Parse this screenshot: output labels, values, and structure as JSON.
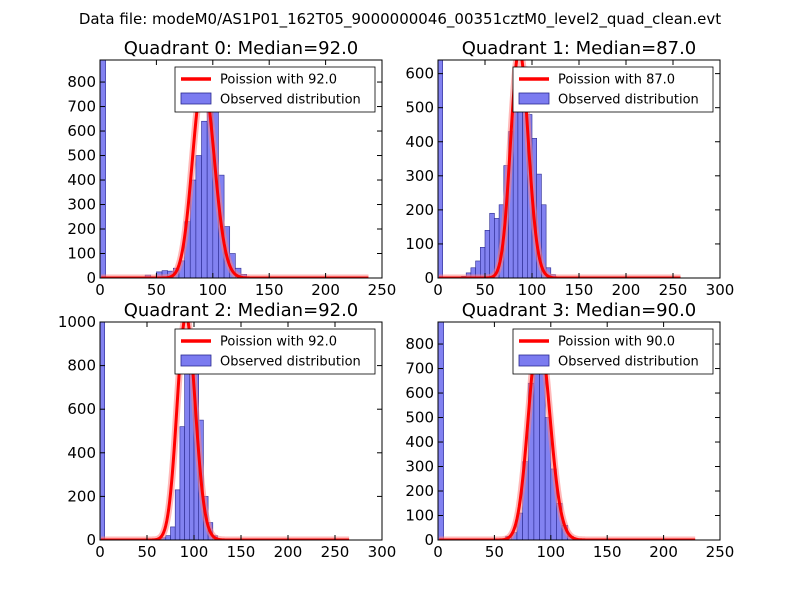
{
  "figure": {
    "suptitle": "Data file: modeM0/AS1P01_162T05_9000000046_00351cztM0_level2_quad_clean.evt"
  },
  "colors": {
    "bar_fill": "#7b7bf0",
    "bar_stroke": "#2a2a90",
    "line": "#ff0000",
    "line_halo": "#ff8080"
  },
  "chart_data": [
    {
      "type": "bar",
      "title": "Quadrant 0: Median=92.0",
      "xlim": [
        0,
        250
      ],
      "ylim": [
        0,
        890
      ],
      "xticks": [
        0,
        50,
        100,
        150,
        200,
        250
      ],
      "yticks": [
        0,
        100,
        200,
        300,
        400,
        500,
        600,
        700,
        800
      ],
      "bin_width": 5,
      "bins": [
        [
          0,
          890
        ],
        [
          40,
          12
        ],
        [
          45,
          5
        ],
        [
          50,
          25
        ],
        [
          55,
          30
        ],
        [
          60,
          28
        ],
        [
          65,
          40
        ],
        [
          70,
          70
        ],
        [
          75,
          230
        ],
        [
          80,
          400
        ],
        [
          85,
          500
        ],
        [
          90,
          640
        ],
        [
          95,
          750
        ],
        [
          100,
          710
        ],
        [
          105,
          420
        ],
        [
          110,
          210
        ],
        [
          115,
          100
        ],
        [
          120,
          40
        ],
        [
          125,
          15
        ]
      ],
      "poisson_mean": 92,
      "curve_xmax": 238,
      "legend": {
        "position": "top-right",
        "line_label": "Poission with 92.0",
        "bar_label": "Observed distribution"
      }
    },
    {
      "type": "bar",
      "title": "Quadrant 1: Median=87.0",
      "xlim": [
        0,
        300
      ],
      "ylim": [
        0,
        640
      ],
      "xticks": [
        0,
        50,
        100,
        150,
        200,
        250,
        300
      ],
      "yticks": [
        0,
        100,
        200,
        300,
        400,
        500,
        600
      ],
      "bin_width": 5,
      "bins": [
        [
          0,
          640
        ],
        [
          25,
          5
        ],
        [
          30,
          15
        ],
        [
          35,
          30
        ],
        [
          40,
          50
        ],
        [
          45,
          90
        ],
        [
          50,
          140
        ],
        [
          55,
          190
        ],
        [
          60,
          175
        ],
        [
          65,
          215
        ],
        [
          70,
          330
        ],
        [
          75,
          430
        ],
        [
          80,
          500
        ],
        [
          85,
          590
        ],
        [
          90,
          620
        ],
        [
          95,
          480
        ],
        [
          100,
          410
        ],
        [
          105,
          305
        ],
        [
          110,
          215
        ],
        [
          115,
          30
        ],
        [
          120,
          10
        ]
      ],
      "poisson_mean": 87,
      "curve_xmax": 258,
      "legend": {
        "position": "top-right",
        "line_label": "Poission with 87.0",
        "bar_label": "Observed distribution"
      }
    },
    {
      "type": "bar",
      "title": "Quadrant 2: Median=92.0",
      "xlim": [
        0,
        300
      ],
      "ylim": [
        0,
        1000
      ],
      "xticks": [
        0,
        50,
        100,
        150,
        200,
        250,
        300
      ],
      "yticks": [
        0,
        200,
        400,
        600,
        800,
        1000
      ],
      "bin_width": 5,
      "bins": [
        [
          0,
          1000
        ],
        [
          65,
          10
        ],
        [
          70,
          20
        ],
        [
          75,
          60
        ],
        [
          80,
          230
        ],
        [
          85,
          520
        ],
        [
          90,
          900
        ],
        [
          95,
          950
        ],
        [
          100,
          840
        ],
        [
          105,
          550
        ],
        [
          110,
          200
        ],
        [
          115,
          80
        ],
        [
          120,
          20
        ]
      ],
      "poisson_mean": 92,
      "curve_xmax": 265,
      "legend": {
        "position": "top-right",
        "line_label": "Poission with 92.0",
        "bar_label": "Observed distribution"
      }
    },
    {
      "type": "bar",
      "title": "Quadrant 3: Median=90.0",
      "xlim": [
        0,
        250
      ],
      "ylim": [
        0,
        890
      ],
      "xticks": [
        0,
        50,
        100,
        150,
        200,
        250
      ],
      "yticks": [
        0,
        100,
        200,
        300,
        400,
        500,
        600,
        700,
        800
      ],
      "bin_width": 5,
      "bins": [
        [
          0,
          890
        ],
        [
          55,
          5
        ],
        [
          60,
          15
        ],
        [
          65,
          30
        ],
        [
          70,
          110
        ],
        [
          75,
          320
        ],
        [
          80,
          640
        ],
        [
          85,
          780
        ],
        [
          90,
          760
        ],
        [
          95,
          500
        ],
        [
          100,
          290
        ],
        [
          105,
          150
        ],
        [
          110,
          60
        ],
        [
          115,
          15
        ]
      ],
      "poisson_mean": 90,
      "curve_xmax": 228,
      "legend": {
        "position": "top-right",
        "line_label": "Poission with 90.0",
        "bar_label": "Observed distribution"
      }
    }
  ]
}
